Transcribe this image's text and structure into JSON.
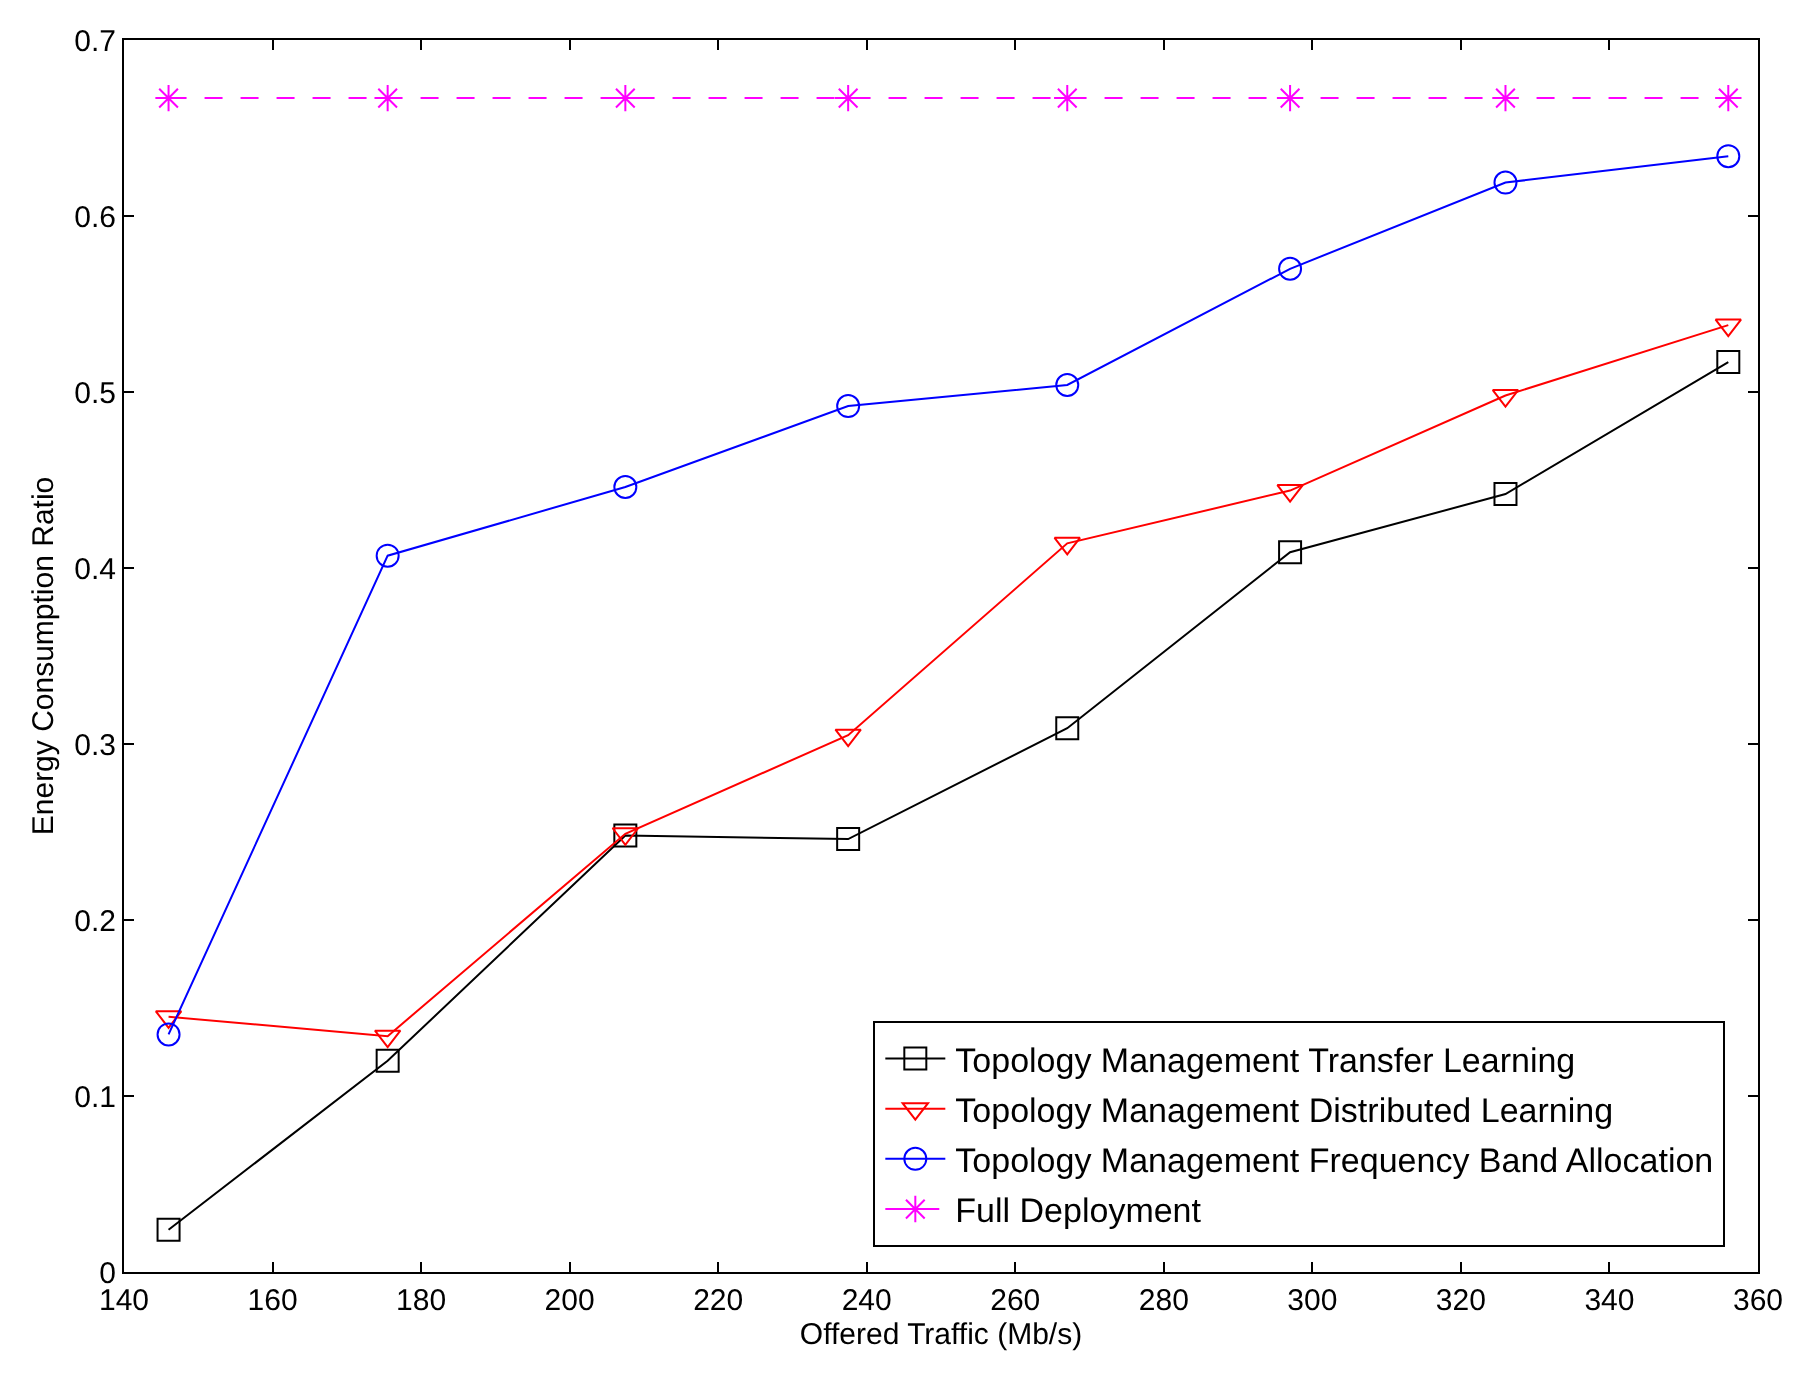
{
  "chart_data": {
    "type": "line",
    "xlabel": "Offered Traffic (Mb/s)",
    "ylabel": "Energy Consumption Ratio",
    "x": [
      146,
      175.5,
      207.5,
      237.5,
      267,
      297,
      326,
      356
    ],
    "xlim": [
      140,
      360
    ],
    "xticks": [
      140,
      160,
      180,
      200,
      220,
      240,
      260,
      280,
      300,
      320,
      340,
      360
    ],
    "ylim": [
      0,
      0.7
    ],
    "yticks": [
      0,
      0.1,
      0.2,
      0.3,
      0.4,
      0.5,
      0.6,
      0.7
    ],
    "legend": "bottom right",
    "series": [
      {
        "name": "Topology Management Transfer Learning",
        "color": "#000000",
        "marker": "square",
        "line_style": "solid",
        "values": [
          0.024,
          0.12,
          0.248,
          0.246,
          0.309,
          0.409,
          0.442,
          0.517
        ]
      },
      {
        "name": "Topology Management Distributed Learning",
        "color": "#ff0000",
        "marker": "triangle",
        "line_style": "solid",
        "values": [
          0.145,
          0.134,
          0.249,
          0.305,
          0.414,
          0.444,
          0.498,
          0.538
        ]
      },
      {
        "name": "Topology Management Frequency Band Allocation",
        "color": "#0000ff",
        "marker": "circle",
        "line_style": "solid",
        "values": [
          0.135,
          0.407,
          0.446,
          0.492,
          0.504,
          0.57,
          0.619,
          0.634
        ]
      },
      {
        "name": "Full Deployment",
        "color": "#ff00ff",
        "marker": "cross",
        "line_style": "dashed",
        "values": [
          0.667,
          0.667,
          0.667,
          0.667,
          0.667,
          0.667,
          0.667,
          0.667
        ]
      }
    ]
  }
}
